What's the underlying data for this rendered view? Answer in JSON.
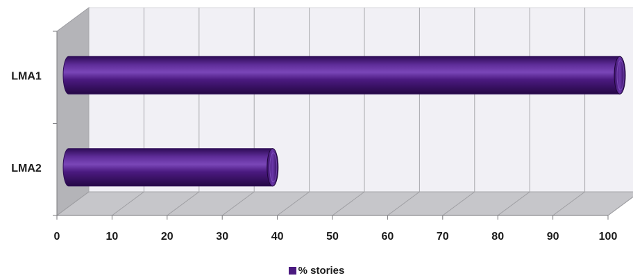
{
  "chart_data": {
    "type": "bar",
    "orientation": "horizontal",
    "style": "3d-cylinder",
    "categories": [
      "LMA1",
      "LMA2"
    ],
    "series": [
      {
        "name": "% stories",
        "values": [
          100,
          37
        ]
      }
    ],
    "xlim": [
      0,
      100
    ],
    "x_ticks": [
      "0",
      "10",
      "20",
      "30",
      "40",
      "50",
      "60",
      "70",
      "80",
      "90",
      "100"
    ],
    "grid": true,
    "legend": "bottom",
    "colors": {
      "bar": "#4b1a80",
      "bar_dark": "#2e0c56",
      "bar_light": "#7a46b8",
      "wall": "#f1f0f5",
      "side_wall": "#b4b4b8",
      "floor": "#c6c6ca",
      "grid": "#a8a8ac"
    }
  }
}
